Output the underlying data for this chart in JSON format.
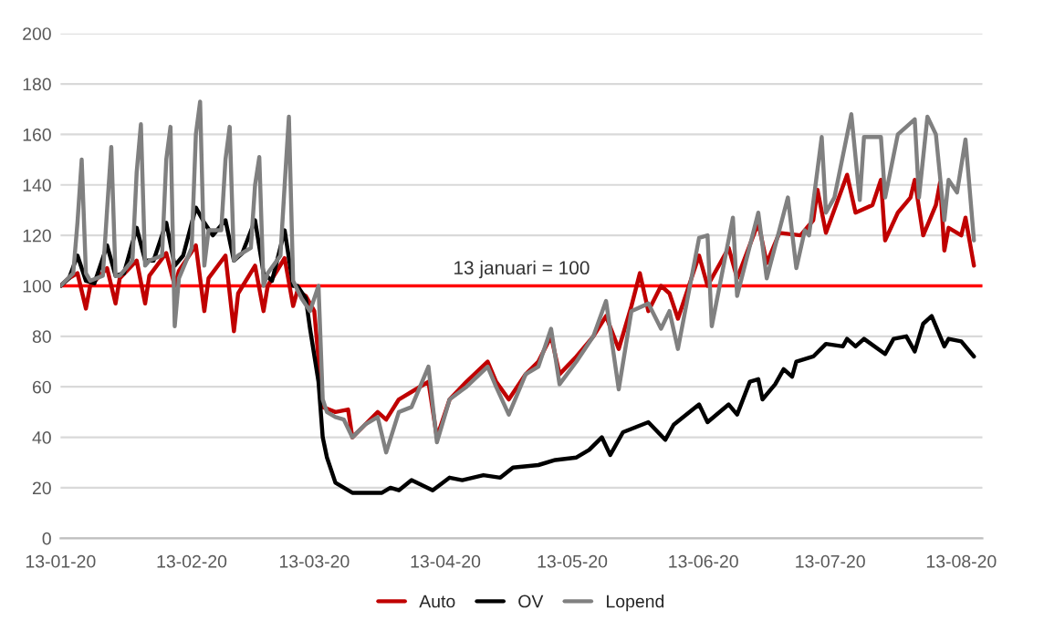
{
  "chart_data": {
    "type": "line",
    "xlim": [
      "2020-01-13",
      "2020-08-18"
    ],
    "xticks": [
      {
        "value": "2020-01-13",
        "label": "13-01-20"
      },
      {
        "value": "2020-02-13",
        "label": "13-02-20"
      },
      {
        "value": "2020-03-13",
        "label": "13-03-20"
      },
      {
        "value": "2020-04-13",
        "label": "13-04-20"
      },
      {
        "value": "2020-05-13",
        "label": "13-05-20"
      },
      {
        "value": "2020-06-13",
        "label": "13-06-20"
      },
      {
        "value": "2020-07-13",
        "label": "13-07-20"
      },
      {
        "value": "2020-08-13",
        "label": "13-08-20"
      }
    ],
    "ylim": [
      0,
      200
    ],
    "yticks": [
      0,
      20,
      40,
      60,
      80,
      100,
      120,
      140,
      160,
      180,
      200
    ],
    "grid": "y",
    "legend": "bottom",
    "marker": "none",
    "line_style": "solid",
    "ref_lines": [
      {
        "axis": "y",
        "value": 100,
        "label": "13 januari = 100",
        "color": "#ff0000"
      }
    ],
    "series": [
      {
        "name": "Auto",
        "color": "#c00000",
        "x": [
          "2020-01-13",
          "2020-01-15",
          "2020-01-17",
          "2020-01-19",
          "2020-01-20",
          "2020-01-24",
          "2020-01-26",
          "2020-01-27",
          "2020-01-31",
          "2020-02-02",
          "2020-02-03",
          "2020-02-07",
          "2020-02-09",
          "2020-02-10",
          "2020-02-14",
          "2020-02-16",
          "2020-02-17",
          "2020-02-21",
          "2020-02-23",
          "2020-02-24",
          "2020-02-28",
          "2020-03-01",
          "2020-03-02",
          "2020-03-06",
          "2020-03-08",
          "2020-03-09",
          "2020-03-11",
          "2020-03-13",
          "2020-03-15",
          "2020-03-18",
          "2020-03-21",
          "2020-03-22",
          "2020-03-25",
          "2020-03-28",
          "2020-03-30",
          "2020-04-02",
          "2020-04-05",
          "2020-04-09",
          "2020-04-11",
          "2020-04-14",
          "2020-04-18",
          "2020-04-23",
          "2020-04-25",
          "2020-04-28",
          "2020-05-02",
          "2020-05-05",
          "2020-05-08",
          "2020-05-10",
          "2020-05-14",
          "2020-05-18",
          "2020-05-21",
          "2020-05-24",
          "2020-05-27",
          "2020-05-29",
          "2020-05-31",
          "2020-06-03",
          "2020-06-05",
          "2020-06-07",
          "2020-06-12",
          "2020-06-14",
          "2020-06-19",
          "2020-06-21",
          "2020-06-26",
          "2020-06-28",
          "2020-07-01",
          "2020-07-06",
          "2020-07-09",
          "2020-07-10",
          "2020-07-12",
          "2020-07-17",
          "2020-07-19",
          "2020-07-23",
          "2020-07-25",
          "2020-07-26",
          "2020-07-29",
          "2020-08-01",
          "2020-08-02",
          "2020-08-04",
          "2020-08-07",
          "2020-08-08",
          "2020-08-09",
          "2020-08-10",
          "2020-08-13",
          "2020-08-14",
          "2020-08-16"
        ],
        "values": [
          100,
          103,
          105,
          91,
          100,
          107,
          93,
          103,
          110,
          93,
          104,
          113,
          100,
          106,
          116,
          90,
          103,
          112,
          82,
          97,
          108,
          90,
          100,
          111,
          92,
          98,
          96,
          90,
          52,
          50,
          51,
          40,
          45,
          50,
          47,
          55,
          58,
          62,
          40,
          55,
          62,
          70,
          62,
          55,
          65,
          70,
          80,
          65,
          72,
          80,
          88,
          75,
          92,
          105,
          90,
          100,
          97,
          87,
          112,
          100,
          115,
          103,
          125,
          109,
          121,
          120,
          126,
          138,
          121,
          144,
          129,
          132,
          142,
          118,
          129,
          135,
          142,
          120,
          132,
          141,
          114,
          123,
          120,
          127,
          108
        ]
      },
      {
        "name": "OV",
        "color": "#000000",
        "x": [
          "2020-01-13",
          "2020-01-15",
          "2020-01-17",
          "2020-01-19",
          "2020-01-21",
          "2020-01-24",
          "2020-01-26",
          "2020-01-28",
          "2020-01-31",
          "2020-02-02",
          "2020-02-04",
          "2020-02-07",
          "2020-02-09",
          "2020-02-11",
          "2020-02-14",
          "2020-02-16",
          "2020-02-18",
          "2020-02-21",
          "2020-02-23",
          "2020-02-25",
          "2020-02-28",
          "2020-03-01",
          "2020-03-03",
          "2020-03-06",
          "2020-03-08",
          "2020-03-09",
          "2020-03-11",
          "2020-03-12",
          "2020-03-14",
          "2020-03-15",
          "2020-03-16",
          "2020-03-18",
          "2020-03-20",
          "2020-03-22",
          "2020-03-29",
          "2020-03-31",
          "2020-04-02",
          "2020-04-05",
          "2020-04-10",
          "2020-04-14",
          "2020-04-17",
          "2020-04-22",
          "2020-04-26",
          "2020-04-29",
          "2020-05-05",
          "2020-05-09",
          "2020-05-14",
          "2020-05-17",
          "2020-05-20",
          "2020-05-22",
          "2020-05-25",
          "2020-05-28",
          "2020-05-31",
          "2020-06-04",
          "2020-06-06",
          "2020-06-12",
          "2020-06-14",
          "2020-06-19",
          "2020-06-21",
          "2020-06-24",
          "2020-06-26",
          "2020-06-27",
          "2020-06-30",
          "2020-07-02",
          "2020-07-04",
          "2020-07-05",
          "2020-07-09",
          "2020-07-12",
          "2020-07-16",
          "2020-07-17",
          "2020-07-19",
          "2020-07-21",
          "2020-07-26",
          "2020-07-28",
          "2020-07-31",
          "2020-08-02",
          "2020-08-04",
          "2020-08-06",
          "2020-08-09",
          "2020-08-10",
          "2020-08-13",
          "2020-08-16"
        ],
        "values": [
          100,
          103,
          112,
          102,
          101,
          116,
          104,
          105,
          123,
          110,
          110,
          125,
          108,
          112,
          131,
          125,
          120,
          126,
          110,
          113,
          126,
          105,
          102,
          122,
          100,
          100,
          95,
          83,
          62,
          40,
          32,
          22,
          20,
          18,
          18,
          20,
          19,
          23,
          19,
          24,
          23,
          25,
          24,
          28,
          29,
          31,
          32,
          35,
          40,
          33,
          42,
          44,
          46,
          39,
          45,
          53,
          46,
          53,
          49,
          62,
          63,
          55,
          61,
          67,
          64,
          70,
          72,
          77,
          76,
          79,
          76,
          79,
          73,
          79,
          80,
          74,
          85,
          88,
          76,
          79,
          78,
          72
        ]
      },
      {
        "name": "Lopend",
        "color": "#808080",
        "x": [
          "2020-01-13",
          "2020-01-16",
          "2020-01-17",
          "2020-01-18",
          "2020-01-19",
          "2020-01-20",
          "2020-01-23",
          "2020-01-24",
          "2020-01-25",
          "2020-01-26",
          "2020-01-27",
          "2020-01-30",
          "2020-01-31",
          "2020-02-01",
          "2020-02-02",
          "2020-02-03",
          "2020-02-06",
          "2020-02-07",
          "2020-02-08",
          "2020-02-09",
          "2020-02-10",
          "2020-02-13",
          "2020-02-14",
          "2020-02-15",
          "2020-02-16",
          "2020-02-17",
          "2020-02-20",
          "2020-02-21",
          "2020-02-22",
          "2020-02-23",
          "2020-02-24",
          "2020-02-27",
          "2020-02-28",
          "2020-02-29",
          "2020-03-01",
          "2020-03-02",
          "2020-03-05",
          "2020-03-06",
          "2020-03-07",
          "2020-03-08",
          "2020-03-10",
          "2020-03-12",
          "2020-03-14",
          "2020-03-15",
          "2020-03-16",
          "2020-03-18",
          "2020-03-20",
          "2020-03-22",
          "2020-03-25",
          "2020-03-28",
          "2020-03-30",
          "2020-04-02",
          "2020-04-05",
          "2020-04-09",
          "2020-04-11",
          "2020-04-14",
          "2020-04-18",
          "2020-04-23",
          "2020-04-25",
          "2020-04-28",
          "2020-05-02",
          "2020-05-05",
          "2020-05-08",
          "2020-05-10",
          "2020-05-14",
          "2020-05-18",
          "2020-05-21",
          "2020-05-24",
          "2020-05-27",
          "2020-05-31",
          "2020-06-03",
          "2020-06-05",
          "2020-06-07",
          "2020-06-12",
          "2020-06-14",
          "2020-06-15",
          "2020-06-20",
          "2020-06-21",
          "2020-06-26",
          "2020-06-28",
          "2020-07-03",
          "2020-07-05",
          "2020-07-07",
          "2020-07-08",
          "2020-07-11",
          "2020-07-12",
          "2020-07-14",
          "2020-07-18",
          "2020-07-20",
          "2020-07-21",
          "2020-07-25",
          "2020-07-26",
          "2020-07-29",
          "2020-08-02",
          "2020-08-03",
          "2020-08-05",
          "2020-08-07",
          "2020-08-09",
          "2020-08-10",
          "2020-08-12",
          "2020-08-14",
          "2020-08-16"
        ],
        "values": [
          100,
          105,
          125,
          150,
          105,
          102,
          104,
          130,
          155,
          104,
          104,
          110,
          145,
          164,
          108,
          110,
          112,
          150,
          163,
          84,
          103,
          115,
          160,
          173,
          108,
          122,
          122,
          150,
          163,
          110,
          112,
          115,
          140,
          151,
          100,
          105,
          112,
          140,
          167,
          102,
          95,
          90,
          100,
          55,
          50,
          48,
          47,
          40,
          45,
          48,
          34,
          50,
          52,
          68,
          38,
          55,
          60,
          68,
          60,
          49,
          65,
          68,
          83,
          61,
          70,
          80,
          94,
          59,
          90,
          93,
          83,
          90,
          75,
          119,
          120,
          84,
          127,
          96,
          129,
          103,
          135,
          107,
          122,
          120,
          159,
          129,
          135,
          168,
          134,
          159,
          159,
          135,
          160,
          166,
          135,
          167,
          160,
          126,
          142,
          137,
          158,
          118
        ]
      }
    ]
  }
}
